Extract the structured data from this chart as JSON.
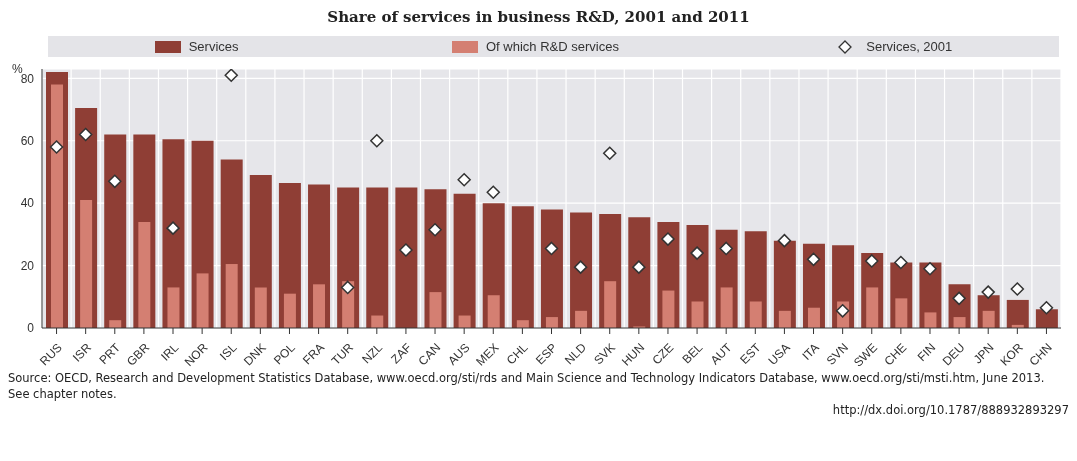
{
  "chart_data": {
    "type": "bar",
    "title": "Share of services in business R&D, 2001 and 2011",
    "ylabel": "%",
    "categories": [
      "RUS",
      "ISR",
      "PRT",
      "GBR",
      "IRL",
      "NOR",
      "ISL",
      "DNK",
      "POL",
      "FRA",
      "TUR",
      "NZL",
      "ZAF",
      "CAN",
      "AUS",
      "MEX",
      "CHL",
      "ESP",
      "NLD",
      "SVK",
      "HUN",
      "CZE",
      "BEL",
      "AUT",
      "EST",
      "USA",
      "ITA",
      "SVN",
      "SWE",
      "CHE",
      "FIN",
      "DEU",
      "JPN",
      "KOR",
      "CHN"
    ],
    "series": [
      {
        "name": "Services",
        "color": "#8f3e35",
        "values": [
          82,
          70.5,
          62,
          62,
          60.5,
          60,
          54,
          49,
          46.5,
          46,
          45,
          45,
          45,
          44.5,
          43,
          40,
          39,
          38,
          37,
          36.5,
          35.5,
          34,
          33,
          31.5,
          31,
          28,
          27,
          26.5,
          24,
          21,
          21,
          14,
          10.5,
          9,
          6
        ]
      },
      {
        "name": "Of which R&D services",
        "color": "#d47f72",
        "values": [
          78,
          41,
          2.5,
          34,
          13,
          17.5,
          20.5,
          13,
          11,
          14,
          15,
          4,
          null,
          11.5,
          4,
          10.5,
          2.5,
          3.5,
          5.5,
          15,
          0.5,
          12,
          8.5,
          13,
          8.5,
          5.5,
          6.5,
          8.5,
          13,
          9.5,
          5,
          3.5,
          5.5,
          1,
          null
        ]
      },
      {
        "name": "Services, 2001",
        "type": "scatter",
        "color": "#ffffff",
        "values": [
          58,
          62,
          47,
          null,
          32,
          null,
          81,
          null,
          null,
          null,
          13,
          60,
          25,
          31.5,
          47.5,
          43.5,
          null,
          25.5,
          19.5,
          56,
          19.5,
          28.5,
          24,
          25.5,
          null,
          28,
          22,
          5.5,
          21.5,
          21,
          19,
          9.5,
          11.5,
          12.5,
          6.5
        ]
      }
    ],
    "marker": "diamond",
    "ylim": [
      0,
      83
    ],
    "yticks": [
      0,
      20,
      40,
      60,
      80
    ],
    "grid": true,
    "legend": "top",
    "annotations": [
      "Source: OECD, Research and Development Statistics Database, www.oecd.org/sti/rds and Main Science and Technology Indicators Database, www.oecd.org/sti/msti.htm, June 2013. See chapter notes.",
      "http://dx.doi.org/10.1787/888932893297"
    ]
  }
}
